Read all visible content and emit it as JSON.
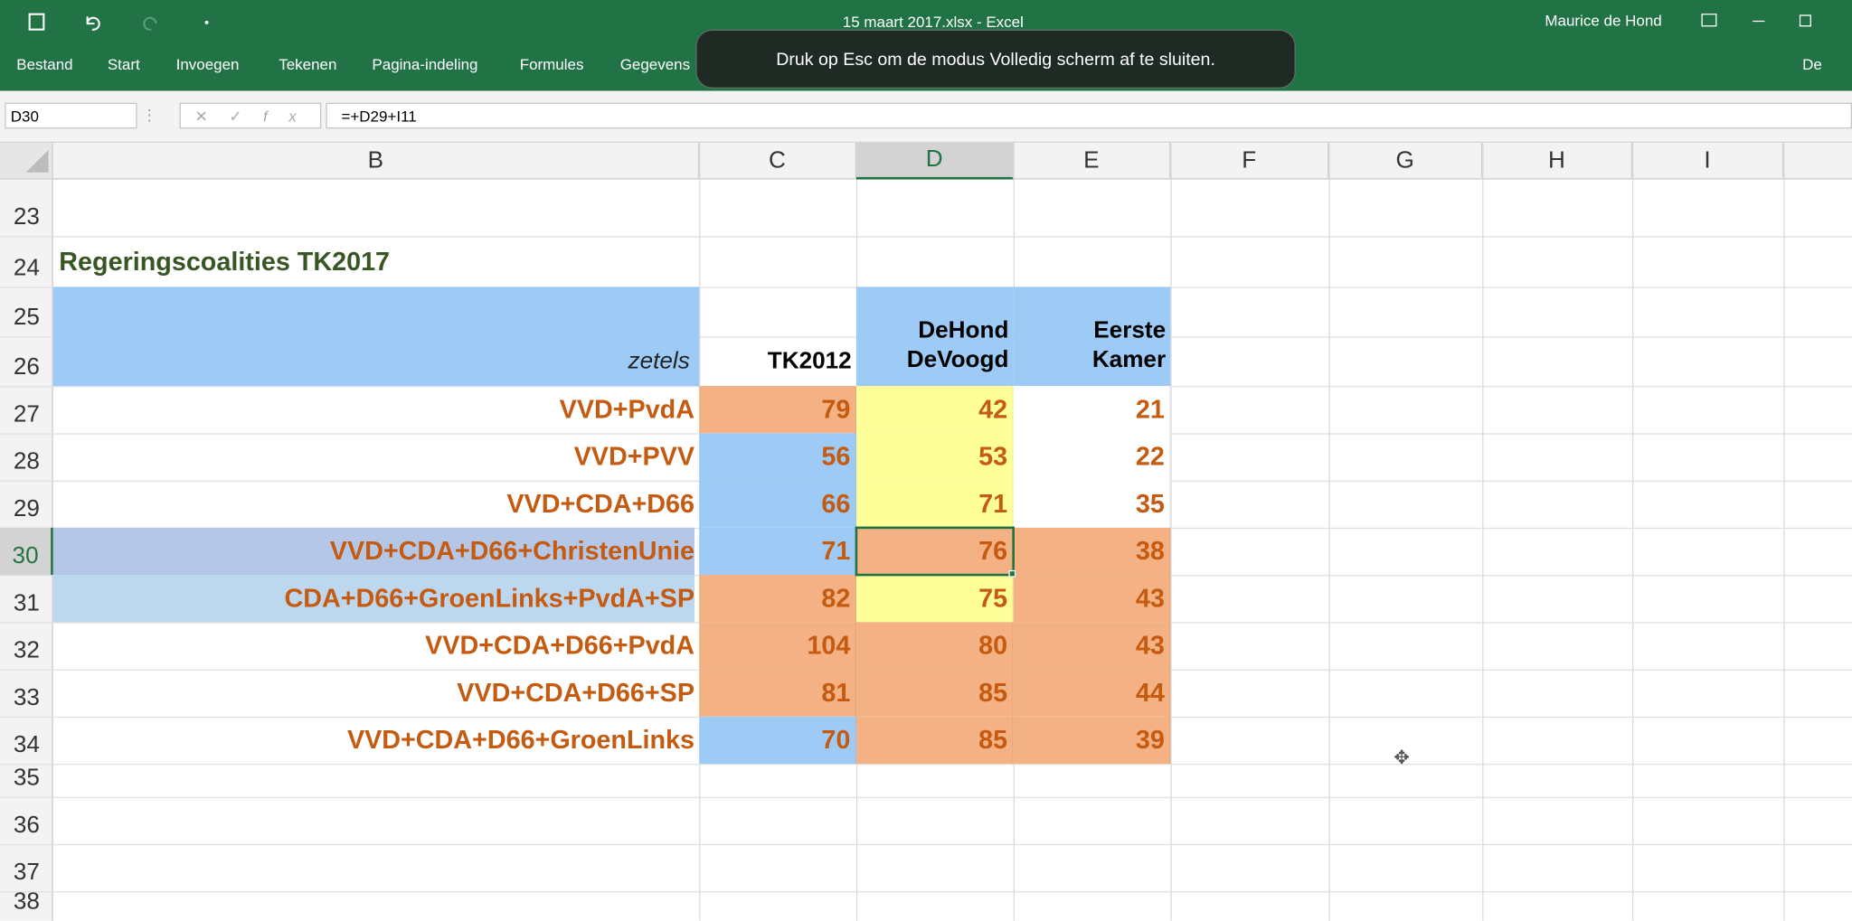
{
  "titlebar": {
    "filename": "15 maart 2017.xlsx - Excel",
    "user": "Maurice de Hond"
  },
  "ribbon": {
    "tabs": [
      "Bestand",
      "Start",
      "Invoegen",
      "Tekenen",
      "Pagina-indeling",
      "Formules",
      "Gegevens"
    ],
    "account": "De"
  },
  "notice": "Druk op Esc om de modus Volledig scherm af te sluiten.",
  "formula_bar": {
    "name_box": "D30",
    "formula": "=+D29+I11"
  },
  "sheet": {
    "columns": [
      "B",
      "C",
      "D",
      "E",
      "F",
      "G",
      "H",
      "I"
    ],
    "rows": [
      23,
      24,
      25,
      26,
      27,
      28,
      29,
      30,
      31,
      32,
      33,
      34,
      35,
      36,
      37,
      38
    ],
    "title": "Regeringscoalities TK2017",
    "headers": {
      "zetels": "zetels",
      "tk2012": "TK2012",
      "dehond": [
        "DeHond",
        "DeVoogd"
      ],
      "eerste_kamer": [
        "Eerste",
        "Kamer"
      ]
    },
    "data": [
      {
        "name": "VVD+PvdA",
        "values": [
          79,
          42,
          21
        ],
        "fills": [
          "#f4b183",
          "#ffff99",
          "#ffffff"
        ]
      },
      {
        "name": "VVD+PVV",
        "values": [
          56,
          53,
          22
        ],
        "fills": [
          "#9dcbf5",
          "#ffff99",
          "#ffffff"
        ]
      },
      {
        "name": "VVD+CDA+D66",
        "values": [
          66,
          71,
          35
        ],
        "fills": [
          "#9dcbf5",
          "#ffff99",
          "#ffffff"
        ]
      },
      {
        "name": "VVD+CDA+D66+ChristenUnie",
        "values": [
          71,
          76,
          38
        ],
        "fills": [
          "#9dcbf5",
          "#f4b183",
          "#f4b183"
        ]
      },
      {
        "name": "CDA+D66+GroenLinks+PvdA+SP",
        "values": [
          82,
          75,
          43
        ],
        "fills": [
          "#f4b183",
          "#ffff99",
          "#f4b183"
        ]
      },
      {
        "name": "VVD+CDA+D66+PvdA",
        "values": [
          104,
          80,
          43
        ],
        "fills": [
          "#f4b183",
          "#f4b183",
          "#f4b183"
        ]
      },
      {
        "name": "VVD+CDA+D66+SP",
        "values": [
          81,
          85,
          44
        ],
        "fills": [
          "#f4b183",
          "#f4b183",
          "#f4b183"
        ]
      },
      {
        "name": "VVD+CDA+D66+GroenLinks",
        "values": [
          70,
          85,
          39
        ],
        "fills": [
          "#9dcbf5",
          "#f4b183",
          "#f4b183"
        ]
      }
    ]
  }
}
